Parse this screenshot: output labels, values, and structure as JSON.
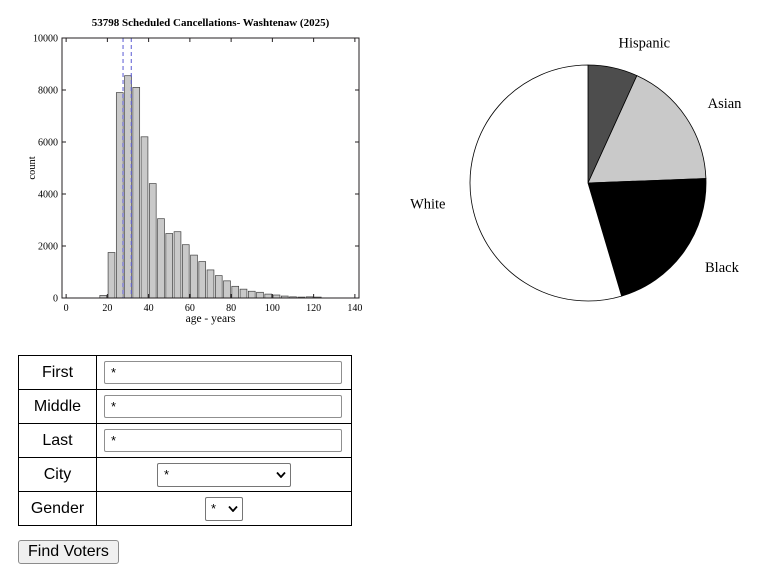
{
  "chart_data": [
    {
      "type": "bar",
      "subtype": "histogram",
      "title": "53798 Scheduled Cancellations- Washtenaw (2025)",
      "xlabel": "age - years",
      "ylabel": "count",
      "xlim": [
        0,
        140
      ],
      "ylim": [
        0,
        10000
      ],
      "xticks": [
        0,
        20,
        40,
        60,
        80,
        100,
        120,
        140
      ],
      "yticks": [
        0,
        2000,
        4000,
        6000,
        8000,
        10000
      ],
      "grid": false,
      "bin_width": 4,
      "bin_starts": [
        16,
        20,
        24,
        28,
        32,
        36,
        40,
        44,
        48,
        52,
        56,
        60,
        64,
        68,
        72,
        76,
        80,
        84,
        88,
        92,
        96,
        100,
        104,
        108,
        112,
        116,
        120
      ],
      "counts": [
        100,
        1750,
        7900,
        8550,
        8100,
        6200,
        4400,
        3050,
        2480,
        2550,
        2050,
        1650,
        1400,
        1080,
        860,
        660,
        450,
        340,
        260,
        220,
        150,
        115,
        75,
        45,
        35,
        45,
        35
      ],
      "marker_lines_x": [
        27.6,
        31.6
      ],
      "bar_fill": "#c9c9c9",
      "bar_edge": "#404040",
      "axis_color": "#231f20",
      "marker_color": "#5d5dd5"
    },
    {
      "type": "pie",
      "title": "",
      "direction": "clockwise",
      "start_angle_deg": 0,
      "edge_color": "#000000",
      "segments": [
        {
          "label": "Hispanic",
          "percent": 6.8,
          "color": "#4d4d4d"
        },
        {
          "label": "Asian",
          "percent": 17.6,
          "color": "#c9c9c9"
        },
        {
          "label": "Black",
          "percent": 21.0,
          "color": "#000000"
        },
        {
          "label": "White",
          "percent": 54.6,
          "color": "#ffffff"
        }
      ]
    }
  ],
  "form": {
    "rows": [
      {
        "label": "First",
        "type": "text",
        "value": "*"
      },
      {
        "label": "Middle",
        "type": "text",
        "value": "*"
      },
      {
        "label": "Last",
        "type": "text",
        "value": "*"
      },
      {
        "label": "City",
        "type": "select",
        "value": "*"
      },
      {
        "label": "Gender",
        "type": "select",
        "value": "*"
      }
    ]
  },
  "actions": {
    "find_voters_label": "Find Voters"
  }
}
